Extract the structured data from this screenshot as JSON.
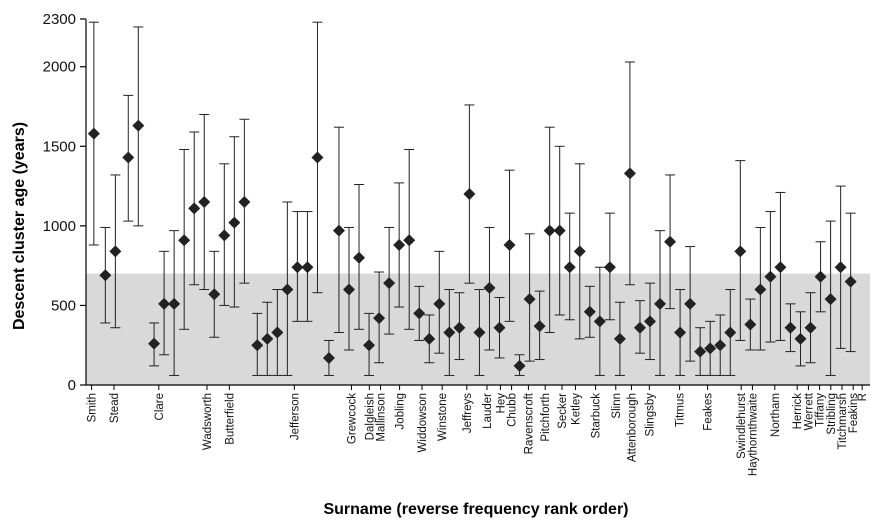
{
  "chart_data": {
    "type": "scatter",
    "title": "",
    "xlabel": "Surname (reverse frequency rank order)",
    "ylabel": "Descent cluster age (years)",
    "ylim": [
      0,
      2300
    ],
    "yticks": [
      "0",
      "500",
      "1000",
      "1500",
      "2000",
      "2300"
    ],
    "ytick_values": [
      0,
      500,
      1000,
      1500,
      2000,
      2300
    ],
    "shaded_band": [
      0,
      700
    ],
    "colors": {
      "band": "#d9d9d9",
      "marker": "#222222",
      "axis": "#000000"
    },
    "x_tick_labels": [
      {
        "label": "Smith",
        "x": 0.5
      },
      {
        "label": "Stead",
        "x": 2.5
      },
      {
        "label": "Clare",
        "x": 6.5
      },
      {
        "label": "Wadsworth",
        "x": 10.8
      },
      {
        "label": "Butterfield",
        "x": 12.8
      },
      {
        "label": "Jefferson",
        "x": 18.6
      },
      {
        "label": "Grewcock",
        "x": 23.7
      },
      {
        "label": "Dalgleish",
        "x": 25.3
      },
      {
        "label": "Mallinson",
        "x": 26.3
      },
      {
        "label": "Jobling",
        "x": 28.0
      },
      {
        "label": "Widdowson",
        "x": 30.0
      },
      {
        "label": "Winstone",
        "x": 31.8
      },
      {
        "label": "Jeffreys",
        "x": 34.0
      },
      {
        "label": "Lauder",
        "x": 35.8
      },
      {
        "label": "Hey",
        "x": 37.0
      },
      {
        "label": "Chubb",
        "x": 38.0
      },
      {
        "label": "Ravenscroft",
        "x": 39.5
      },
      {
        "label": "Pitchforth",
        "x": 41.0
      },
      {
        "label": "Secker",
        "x": 42.5
      },
      {
        "label": "Ketley",
        "x": 43.7
      },
      {
        "label": "Starbuck",
        "x": 45.5
      },
      {
        "label": "Slinn",
        "x": 47.3
      },
      {
        "label": "Attenborough",
        "x": 48.7
      },
      {
        "label": "Slingsby",
        "x": 50.3
      },
      {
        "label": "Titmus",
        "x": 53.0
      },
      {
        "label": "Feakes",
        "x": 55.5
      },
      {
        "label": "Swindlehurst",
        "x": 58.5
      },
      {
        "label": "Haythornthwaite",
        "x": 59.5
      },
      {
        "label": "Northam",
        "x": 61.5
      },
      {
        "label": "Herrick",
        "x": 63.5
      },
      {
        "label": "Werrett",
        "x": 64.5
      },
      {
        "label": "Tiffany",
        "x": 65.5
      },
      {
        "label": "Stribling",
        "x": 66.5
      },
      {
        "label": "Titchmarsh",
        "x": 67.5
      },
      {
        "label": "Feakins",
        "x": 68.5
      },
      {
        "label": "R",
        "x": 69.3
      }
    ],
    "points": [
      {
        "x": 0.2,
        "y": 1580,
        "lo": 880,
        "hi": 2280
      },
      {
        "x": 1.0,
        "y": 690,
        "lo": 390,
        "hi": 990
      },
      {
        "x": 1.7,
        "y": 840,
        "lo": 360,
        "hi": 1320
      },
      {
        "x": 2.6,
        "y": 1430,
        "lo": 1030,
        "hi": 1820
      },
      {
        "x": 3.3,
        "y": 1630,
        "lo": 1000,
        "hi": 2250
      },
      {
        "x": 4.4,
        "y": 260,
        "lo": 120,
        "hi": 390
      },
      {
        "x": 5.1,
        "y": 510,
        "lo": 190,
        "hi": 840
      },
      {
        "x": 5.8,
        "y": 510,
        "lo": 60,
        "hi": 970
      },
      {
        "x": 6.5,
        "y": 910,
        "lo": 350,
        "hi": 1480
      },
      {
        "x": 7.2,
        "y": 1110,
        "lo": 630,
        "hi": 1590
      },
      {
        "x": 7.9,
        "y": 1150,
        "lo": 600,
        "hi": 1700
      },
      {
        "x": 8.6,
        "y": 570,
        "lo": 300,
        "hi": 840
      },
      {
        "x": 9.3,
        "y": 940,
        "lo": 500,
        "hi": 1390
      },
      {
        "x": 10.0,
        "y": 1020,
        "lo": 490,
        "hi": 1560
      },
      {
        "x": 10.7,
        "y": 1150,
        "lo": 640,
        "hi": 1670
      },
      {
        "x": 11.6,
        "y": 250,
        "lo": 60,
        "hi": 450
      },
      {
        "x": 12.3,
        "y": 290,
        "lo": 60,
        "hi": 520
      },
      {
        "x": 13.0,
        "y": 330,
        "lo": 60,
        "hi": 600
      },
      {
        "x": 13.7,
        "y": 600,
        "lo": 60,
        "hi": 1150
      },
      {
        "x": 14.4,
        "y": 740,
        "lo": 400,
        "hi": 1090
      },
      {
        "x": 15.1,
        "y": 740,
        "lo": 400,
        "hi": 1090
      },
      {
        "x": 15.8,
        "y": 1430,
        "lo": 580,
        "hi": 2280
      },
      {
        "x": 16.6,
        "y": 170,
        "lo": 60,
        "hi": 280
      },
      {
        "x": 17.3,
        "y": 970,
        "lo": 330,
        "hi": 1620
      },
      {
        "x": 18.0,
        "y": 600,
        "lo": 220,
        "hi": 990
      },
      {
        "x": 18.7,
        "y": 800,
        "lo": 350,
        "hi": 1260
      },
      {
        "x": 19.4,
        "y": 250,
        "lo": 60,
        "hi": 450
      },
      {
        "x": 20.1,
        "y": 420,
        "lo": 140,
        "hi": 710
      },
      {
        "x": 20.8,
        "y": 640,
        "lo": 320,
        "hi": 990
      },
      {
        "x": 21.5,
        "y": 880,
        "lo": 490,
        "hi": 1270
      },
      {
        "x": 22.2,
        "y": 910,
        "lo": 350,
        "hi": 1480
      },
      {
        "x": 22.9,
        "y": 450,
        "lo": 280,
        "hi": 620
      },
      {
        "x": 23.6,
        "y": 290,
        "lo": 140,
        "hi": 440
      },
      {
        "x": 24.3,
        "y": 510,
        "lo": 200,
        "hi": 840
      },
      {
        "x": 25.0,
        "y": 330,
        "lo": 60,
        "hi": 600
      },
      {
        "x": 25.7,
        "y": 360,
        "lo": 160,
        "hi": 580
      },
      {
        "x": 26.4,
        "y": 1200,
        "lo": 640,
        "hi": 1760
      },
      {
        "x": 27.1,
        "y": 330,
        "lo": 60,
        "hi": 600
      },
      {
        "x": 27.8,
        "y": 610,
        "lo": 220,
        "hi": 990
      },
      {
        "x": 28.5,
        "y": 360,
        "lo": 170,
        "hi": 550
      },
      {
        "x": 29.2,
        "y": 880,
        "lo": 400,
        "hi": 1350
      },
      {
        "x": 29.9,
        "y": 120,
        "lo": 60,
        "hi": 190
      },
      {
        "x": 30.6,
        "y": 540,
        "lo": 150,
        "hi": 950
      },
      {
        "x": 31.3,
        "y": 370,
        "lo": 160,
        "hi": 590
      },
      {
        "x": 32.0,
        "y": 970,
        "lo": 330,
        "hi": 1620
      },
      {
        "x": 32.7,
        "y": 970,
        "lo": 440,
        "hi": 1500
      },
      {
        "x": 33.4,
        "y": 740,
        "lo": 410,
        "hi": 1080
      },
      {
        "x": 34.1,
        "y": 840,
        "lo": 290,
        "hi": 1390
      },
      {
        "x": 34.8,
        "y": 460,
        "lo": 300,
        "hi": 620
      },
      {
        "x": 35.5,
        "y": 400,
        "lo": 60,
        "hi": 740
      },
      {
        "x": 36.2,
        "y": 740,
        "lo": 410,
        "hi": 1080
      },
      {
        "x": 36.9,
        "y": 290,
        "lo": 60,
        "hi": 520
      },
      {
        "x": 37.6,
        "y": 1330,
        "lo": 630,
        "hi": 2030
      },
      {
        "x": 38.3,
        "y": 360,
        "lo": 200,
        "hi": 530
      },
      {
        "x": 39.0,
        "y": 400,
        "lo": 160,
        "hi": 640
      },
      {
        "x": 39.7,
        "y": 510,
        "lo": 60,
        "hi": 970
      },
      {
        "x": 40.4,
        "y": 900,
        "lo": 480,
        "hi": 1320
      },
      {
        "x": 41.1,
        "y": 330,
        "lo": 60,
        "hi": 600
      },
      {
        "x": 41.8,
        "y": 510,
        "lo": 150,
        "hi": 870
      },
      {
        "x": 42.5,
        "y": 210,
        "lo": 60,
        "hi": 360
      },
      {
        "x": 43.2,
        "y": 230,
        "lo": 60,
        "hi": 400
      },
      {
        "x": 43.9,
        "y": 250,
        "lo": 60,
        "hi": 440
      },
      {
        "x": 44.6,
        "y": 330,
        "lo": 60,
        "hi": 600
      },
      {
        "x": 45.3,
        "y": 840,
        "lo": 280,
        "hi": 1410
      },
      {
        "x": 46.0,
        "y": 380,
        "lo": 220,
        "hi": 540
      },
      {
        "x": 46.7,
        "y": 600,
        "lo": 220,
        "hi": 990
      },
      {
        "x": 47.4,
        "y": 680,
        "lo": 270,
        "hi": 1090
      },
      {
        "x": 48.1,
        "y": 740,
        "lo": 280,
        "hi": 1210
      },
      {
        "x": 48.8,
        "y": 360,
        "lo": 210,
        "hi": 510
      },
      {
        "x": 49.5,
        "y": 290,
        "lo": 120,
        "hi": 460
      },
      {
        "x": 50.2,
        "y": 360,
        "lo": 140,
        "hi": 580
      },
      {
        "x": 50.9,
        "y": 680,
        "lo": 460,
        "hi": 900
      },
      {
        "x": 51.6,
        "y": 540,
        "lo": 60,
        "hi": 1030
      },
      {
        "x": 52.3,
        "y": 740,
        "lo": 230,
        "hi": 1250
      },
      {
        "x": 53.0,
        "y": 650,
        "lo": 210,
        "hi": 1080
      }
    ]
  }
}
